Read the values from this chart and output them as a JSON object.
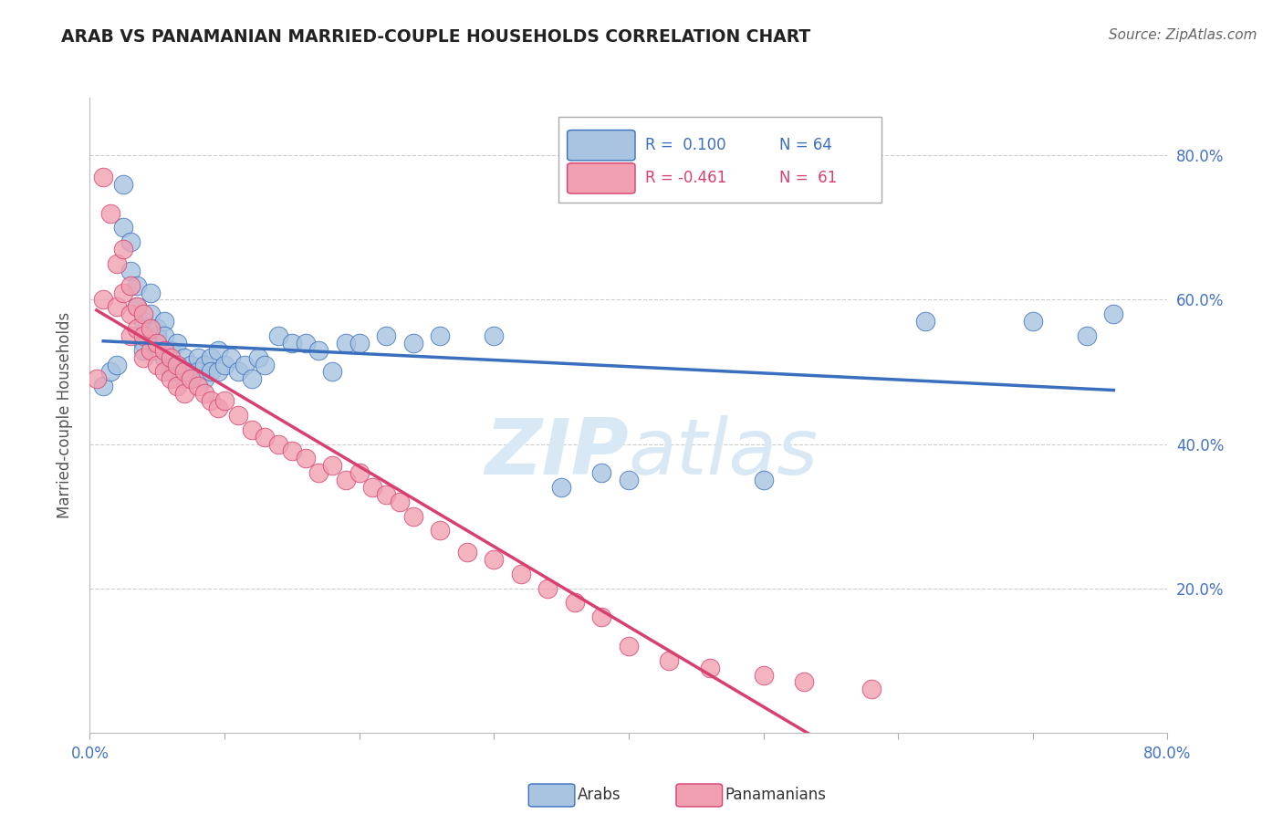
{
  "title": "ARAB VS PANAMANIAN MARRIED-COUPLE HOUSEHOLDS CORRELATION CHART",
  "source": "Source: ZipAtlas.com",
  "ylabel": "Married-couple Households",
  "ytick_values": [
    0.2,
    0.4,
    0.6,
    0.8
  ],
  "xlim": [
    0.0,
    0.8
  ],
  "ylim": [
    0.0,
    0.88
  ],
  "arab_color": "#a8c4e0",
  "arab_line_color": "#3a6fbd",
  "pan_color": "#f0a0b0",
  "pan_line_color": "#d94070",
  "watermark_color": "#d8e8f5",
  "background_color": "#ffffff",
  "grid_color": "#cccccc",
  "axis_label_color": "#4472c4",
  "title_color": "#222222",
  "arab_x": [
    0.01,
    0.015,
    0.02,
    0.025,
    0.025,
    0.03,
    0.03,
    0.035,
    0.035,
    0.04,
    0.04,
    0.04,
    0.045,
    0.045,
    0.05,
    0.05,
    0.05,
    0.055,
    0.055,
    0.055,
    0.06,
    0.06,
    0.06,
    0.065,
    0.065,
    0.07,
    0.07,
    0.07,
    0.075,
    0.075,
    0.08,
    0.08,
    0.085,
    0.085,
    0.09,
    0.09,
    0.095,
    0.095,
    0.1,
    0.105,
    0.11,
    0.115,
    0.12,
    0.125,
    0.13,
    0.14,
    0.15,
    0.16,
    0.17,
    0.18,
    0.19,
    0.2,
    0.22,
    0.24,
    0.26,
    0.3,
    0.35,
    0.38,
    0.4,
    0.5,
    0.62,
    0.7,
    0.74,
    0.76
  ],
  "arab_y": [
    0.48,
    0.5,
    0.51,
    0.76,
    0.7,
    0.68,
    0.64,
    0.62,
    0.59,
    0.57,
    0.54,
    0.53,
    0.61,
    0.58,
    0.55,
    0.56,
    0.53,
    0.57,
    0.55,
    0.52,
    0.51,
    0.53,
    0.5,
    0.54,
    0.51,
    0.52,
    0.5,
    0.49,
    0.51,
    0.49,
    0.52,
    0.5,
    0.51,
    0.49,
    0.52,
    0.5,
    0.53,
    0.5,
    0.51,
    0.52,
    0.5,
    0.51,
    0.49,
    0.52,
    0.51,
    0.55,
    0.54,
    0.54,
    0.53,
    0.5,
    0.54,
    0.54,
    0.55,
    0.54,
    0.55,
    0.55,
    0.34,
    0.36,
    0.35,
    0.35,
    0.57,
    0.57,
    0.55,
    0.58
  ],
  "pan_x": [
    0.005,
    0.01,
    0.01,
    0.015,
    0.02,
    0.02,
    0.025,
    0.025,
    0.03,
    0.03,
    0.03,
    0.035,
    0.035,
    0.04,
    0.04,
    0.04,
    0.045,
    0.045,
    0.05,
    0.05,
    0.055,
    0.055,
    0.06,
    0.06,
    0.065,
    0.065,
    0.07,
    0.07,
    0.075,
    0.08,
    0.085,
    0.09,
    0.095,
    0.1,
    0.11,
    0.12,
    0.13,
    0.14,
    0.15,
    0.16,
    0.17,
    0.18,
    0.19,
    0.2,
    0.21,
    0.22,
    0.23,
    0.24,
    0.26,
    0.28,
    0.3,
    0.32,
    0.34,
    0.36,
    0.38,
    0.4,
    0.43,
    0.46,
    0.5,
    0.53,
    0.58
  ],
  "pan_y": [
    0.49,
    0.77,
    0.6,
    0.72,
    0.65,
    0.59,
    0.67,
    0.61,
    0.62,
    0.58,
    0.55,
    0.59,
    0.56,
    0.58,
    0.55,
    0.52,
    0.56,
    0.53,
    0.54,
    0.51,
    0.53,
    0.5,
    0.52,
    0.49,
    0.51,
    0.48,
    0.5,
    0.47,
    0.49,
    0.48,
    0.47,
    0.46,
    0.45,
    0.46,
    0.44,
    0.42,
    0.41,
    0.4,
    0.39,
    0.38,
    0.36,
    0.37,
    0.35,
    0.36,
    0.34,
    0.33,
    0.32,
    0.3,
    0.28,
    0.25,
    0.24,
    0.22,
    0.2,
    0.18,
    0.16,
    0.12,
    0.1,
    0.09,
    0.08,
    0.07,
    0.06
  ]
}
